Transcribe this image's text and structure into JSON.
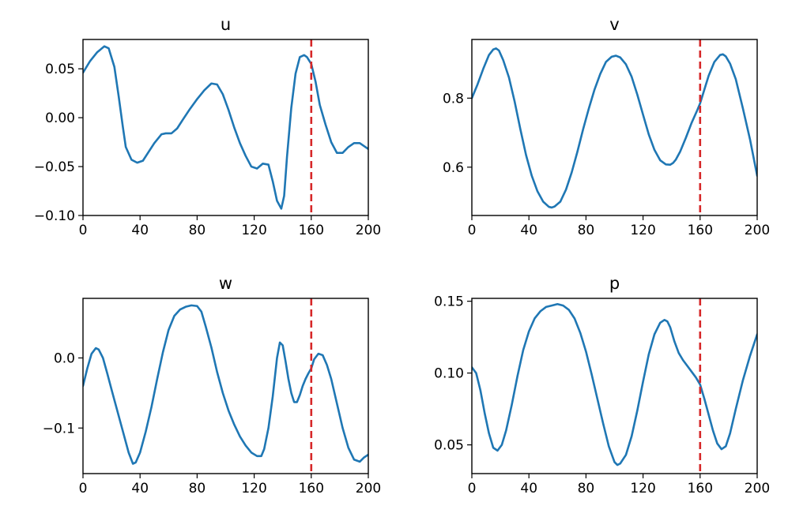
{
  "colors": {
    "series": "#1f77b4",
    "marker": "#d62728",
    "axes": "#000000"
  },
  "chart_data": [
    {
      "type": "line",
      "title": "u",
      "xlabel": "",
      "ylabel": "",
      "xlim": [
        0,
        200
      ],
      "ylim": [
        -0.1,
        0.08
      ],
      "xticks": [
        0,
        40,
        80,
        120,
        160,
        200
      ],
      "xtick_labels": [
        "0",
        "40",
        "80",
        "120",
        "160",
        "200"
      ],
      "yticks": [
        -0.1,
        -0.05,
        0.0,
        0.05
      ],
      "ytick_labels": [
        "−0.10",
        "−0.05",
        "0.00",
        "0.05"
      ],
      "vline_x": 160,
      "series": [
        {
          "x": [
            0,
            5,
            10,
            15,
            18,
            22,
            25,
            28,
            30,
            34,
            38,
            42,
            46,
            50,
            55,
            58,
            62,
            66,
            70,
            75,
            80,
            85,
            90,
            94,
            98,
            102,
            106,
            110,
            114,
            118,
            122,
            126,
            130,
            133,
            136,
            139,
            141,
            143,
            146,
            149,
            152,
            155,
            157,
            160,
            163,
            166,
            170,
            174,
            178,
            182,
            186,
            190,
            194,
            198,
            200
          ],
          "y": [
            0.046,
            0.058,
            0.067,
            0.073,
            0.071,
            0.052,
            0.022,
            -0.01,
            -0.03,
            -0.043,
            -0.046,
            -0.044,
            -0.035,
            -0.026,
            -0.017,
            -0.016,
            -0.016,
            -0.011,
            -0.002,
            0.009,
            0.019,
            0.028,
            0.035,
            0.034,
            0.024,
            0.008,
            -0.01,
            -0.026,
            -0.039,
            -0.05,
            -0.052,
            -0.047,
            -0.048,
            -0.065,
            -0.085,
            -0.093,
            -0.08,
            -0.04,
            0.01,
            0.045,
            0.062,
            0.064,
            0.062,
            0.055,
            0.037,
            0.013,
            -0.007,
            -0.025,
            -0.036,
            -0.036,
            -0.03,
            -0.026,
            -0.026,
            -0.03,
            -0.032
          ]
        }
      ]
    },
    {
      "type": "line",
      "title": "v",
      "xlabel": "",
      "ylabel": "",
      "xlim": [
        0,
        200
      ],
      "ylim": [
        0.46,
        0.97
      ],
      "xticks": [
        0,
        40,
        80,
        120,
        160,
        200
      ],
      "xtick_labels": [
        "0",
        "40",
        "80",
        "120",
        "160",
        "200"
      ],
      "yticks": [
        0.6,
        0.8
      ],
      "ytick_labels": [
        "0.6",
        "0.8"
      ],
      "vline_x": 160,
      "series": [
        {
          "x": [
            0,
            4,
            8,
            12,
            15,
            17,
            19,
            22,
            26,
            30,
            34,
            38,
            42,
            46,
            50,
            54,
            56,
            58,
            62,
            66,
            70,
            74,
            78,
            82,
            86,
            90,
            94,
            98,
            101,
            104,
            108,
            112,
            116,
            120,
            124,
            128,
            132,
            136,
            139,
            141,
            143,
            146,
            150,
            154,
            158,
            160,
            163,
            166,
            170,
            174,
            176,
            178,
            181,
            185,
            190,
            195,
            200
          ],
          "y": [
            0.8,
            0.84,
            0.885,
            0.925,
            0.941,
            0.944,
            0.938,
            0.91,
            0.86,
            0.79,
            0.71,
            0.635,
            0.575,
            0.53,
            0.5,
            0.485,
            0.483,
            0.486,
            0.5,
            0.535,
            0.585,
            0.645,
            0.71,
            0.77,
            0.825,
            0.87,
            0.905,
            0.92,
            0.923,
            0.918,
            0.898,
            0.862,
            0.81,
            0.752,
            0.695,
            0.65,
            0.62,
            0.608,
            0.607,
            0.612,
            0.622,
            0.645,
            0.685,
            0.728,
            0.765,
            0.785,
            0.825,
            0.865,
            0.905,
            0.925,
            0.927,
            0.921,
            0.9,
            0.855,
            0.77,
            0.68,
            0.575
          ]
        }
      ]
    },
    {
      "type": "line",
      "title": "w",
      "xlabel": "",
      "ylabel": "",
      "xlim": [
        0,
        200
      ],
      "ylim": [
        -0.165,
        0.085
      ],
      "xticks": [
        0,
        40,
        80,
        120,
        160,
        200
      ],
      "xtick_labels": [
        "0",
        "40",
        "80",
        "120",
        "160",
        "200"
      ],
      "yticks": [
        -0.1,
        0.0
      ],
      "ytick_labels": [
        "−0.1",
        "0.0"
      ],
      "vline_x": 160,
      "series": [
        {
          "x": [
            0,
            3,
            6,
            9,
            11,
            14,
            17,
            20,
            24,
            28,
            32,
            35,
            37,
            40,
            44,
            48,
            52,
            56,
            60,
            64,
            68,
            72,
            76,
            80,
            83,
            86,
            90,
            94,
            98,
            102,
            106,
            110,
            114,
            118,
            122,
            125,
            127,
            130,
            133,
            136,
            138,
            140,
            142,
            144,
            146,
            148,
            150,
            152,
            154,
            156,
            158,
            160,
            162,
            165,
            168,
            171,
            174,
            178,
            182,
            186,
            190,
            194,
            197,
            200
          ],
          "y": [
            -0.04,
            -0.015,
            0.006,
            0.014,
            0.012,
            0.0,
            -0.022,
            -0.045,
            -0.075,
            -0.105,
            -0.135,
            -0.151,
            -0.149,
            -0.135,
            -0.105,
            -0.07,
            -0.03,
            0.008,
            0.04,
            0.06,
            0.069,
            0.073,
            0.075,
            0.074,
            0.066,
            0.045,
            0.015,
            -0.02,
            -0.05,
            -0.075,
            -0.095,
            -0.112,
            -0.125,
            -0.135,
            -0.14,
            -0.14,
            -0.13,
            -0.1,
            -0.055,
            0.0,
            0.022,
            0.018,
            -0.005,
            -0.03,
            -0.05,
            -0.063,
            -0.063,
            -0.053,
            -0.04,
            -0.03,
            -0.022,
            -0.015,
            -0.002,
            0.006,
            0.004,
            -0.01,
            -0.03,
            -0.065,
            -0.1,
            -0.128,
            -0.145,
            -0.148,
            -0.142,
            -0.138
          ]
        }
      ]
    },
    {
      "type": "line",
      "title": "p",
      "xlabel": "",
      "ylabel": "",
      "xlim": [
        0,
        200
      ],
      "ylim": [
        0.03,
        0.152
      ],
      "xticks": [
        0,
        40,
        80,
        120,
        160,
        200
      ],
      "xtick_labels": [
        "0",
        "40",
        "80",
        "120",
        "160",
        "200"
      ],
      "yticks": [
        0.05,
        0.1,
        0.15
      ],
      "ytick_labels": [
        "0.05",
        "0.10",
        "0.15"
      ],
      "vline_x": 160,
      "series": [
        {
          "x": [
            0,
            3,
            6,
            9,
            12,
            15,
            18,
            21,
            24,
            28,
            32,
            36,
            40,
            44,
            48,
            52,
            56,
            60,
            64,
            68,
            72,
            76,
            80,
            84,
            88,
            92,
            96,
            100,
            102,
            104,
            108,
            112,
            116,
            120,
            124,
            128,
            132,
            135,
            137,
            139,
            142,
            145,
            148,
            151,
            154,
            157,
            160,
            163,
            166,
            169,
            172,
            175,
            178,
            181,
            185,
            190,
            195,
            200
          ],
          "y": [
            0.104,
            0.1,
            0.088,
            0.072,
            0.058,
            0.048,
            0.046,
            0.05,
            0.06,
            0.078,
            0.098,
            0.116,
            0.129,
            0.138,
            0.143,
            0.146,
            0.147,
            0.148,
            0.147,
            0.144,
            0.138,
            0.128,
            0.115,
            0.099,
            0.082,
            0.065,
            0.049,
            0.038,
            0.036,
            0.037,
            0.043,
            0.056,
            0.074,
            0.094,
            0.113,
            0.127,
            0.135,
            0.137,
            0.136,
            0.132,
            0.122,
            0.114,
            0.109,
            0.105,
            0.101,
            0.097,
            0.092,
            0.082,
            0.071,
            0.06,
            0.051,
            0.047,
            0.049,
            0.058,
            0.075,
            0.095,
            0.112,
            0.127
          ]
        }
      ]
    }
  ]
}
